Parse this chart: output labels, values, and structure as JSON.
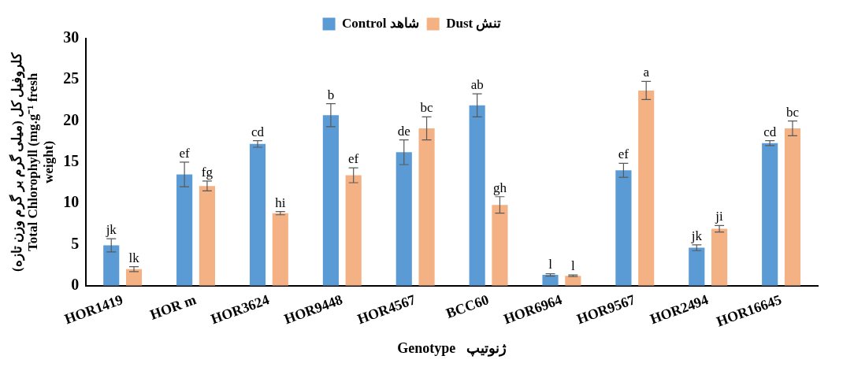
{
  "chart_data": {
    "type": "bar",
    "xlabel": "Genotype   ژنوتیپ",
    "ylabel": "کلروفیل کل (میلی گرم بر گرم وزن تازه)\nTotal Chlorophyll (mg.g⁻¹ fresh\nweight)",
    "categories": [
      "HOR1419",
      "HOR m",
      "HOR3624",
      "HOR9448",
      "HOR4567",
      "BCC60",
      "HOR6964",
      "HOR9567",
      "HOR2494",
      "HOR16645"
    ],
    "series": [
      {
        "name": "Control شاهد",
        "color": "#5b9bd5",
        "values": [
          4.9,
          13.5,
          17.2,
          20.7,
          16.2,
          21.9,
          1.3,
          14.0,
          4.6,
          17.3
        ],
        "errors": [
          0.8,
          1.5,
          0.4,
          1.4,
          1.5,
          1.4,
          0.15,
          0.85,
          0.35,
          0.3
        ],
        "value_labels": [
          "jk",
          "ef",
          "cd",
          "b",
          "de",
          "ab",
          "l",
          "ef",
          "jk",
          "cd"
        ]
      },
      {
        "name": "Dust تنش",
        "color": "#f4b183",
        "values": [
          2.0,
          12.1,
          8.8,
          13.4,
          19.1,
          9.8,
          1.2,
          23.7,
          6.9,
          19.1
        ],
        "errors": [
          0.3,
          0.6,
          0.2,
          0.9,
          1.4,
          1.0,
          0.1,
          1.1,
          0.4,
          0.9
        ],
        "value_labels": [
          "lk",
          "fg",
          "hi",
          "ef",
          "bc",
          "gh",
          "l",
          "a",
          "ji",
          "bc"
        ]
      }
    ],
    "ylim": [
      0,
      30
    ],
    "yticks": [
      0,
      5,
      10,
      15,
      20,
      25,
      30
    ],
    "grid": false,
    "legend": "top"
  }
}
